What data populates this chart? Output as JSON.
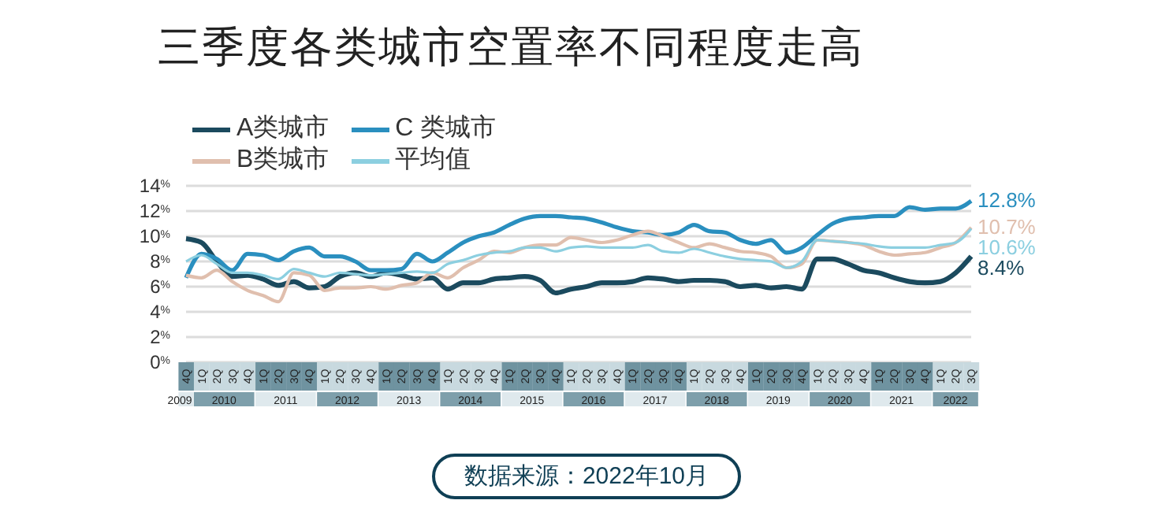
{
  "chart_data": {
    "type": "line",
    "title": "三季度各类城市空置率不同程度走高",
    "categories": [
      "4Q",
      "1Q",
      "2Q",
      "3Q",
      "4Q",
      "1Q",
      "2Q",
      "3Q",
      "4Q",
      "1Q",
      "2Q",
      "3Q",
      "4Q",
      "1Q",
      "2Q",
      "3Q",
      "4Q",
      "1Q",
      "2Q",
      "3Q",
      "4Q",
      "1Q",
      "2Q",
      "3Q",
      "4Q",
      "1Q",
      "2Q",
      "3Q",
      "4Q",
      "1Q",
      "2Q",
      "3Q",
      "4Q",
      "1Q",
      "2Q",
      "3Q",
      "4Q",
      "1Q",
      "2Q",
      "3Q",
      "4Q",
      "1Q",
      "2Q",
      "3Q",
      "4Q",
      "1Q",
      "2Q",
      "3Q",
      "4Q",
      "1Q",
      "2Q",
      "3Q"
    ],
    "series": [
      {
        "name": "A类城市",
        "color": "#1b4a5e",
        "values": [
          9.8,
          9.5,
          8.0,
          6.8,
          6.9,
          6.6,
          6.1,
          6.4,
          5.9,
          6.0,
          6.8,
          7.1,
          6.8,
          7.1,
          6.9,
          6.6,
          6.7,
          5.8,
          6.3,
          6.3,
          6.6,
          6.7,
          6.8,
          6.5,
          5.5,
          5.8,
          6.0,
          6.3,
          6.3,
          6.4,
          6.7,
          6.6,
          6.4,
          6.5,
          6.5,
          6.4,
          6.0,
          6.1,
          5.9,
          6.0,
          5.8,
          8.2,
          8.2,
          7.8,
          7.3,
          7.1,
          6.7,
          6.4,
          6.3,
          6.4,
          7.1,
          8.4
        ],
        "value_labels": [
          null,
          null,
          null,
          null,
          null,
          null,
          null,
          null,
          null,
          null,
          null,
          null,
          null,
          null,
          null,
          null,
          null,
          null,
          null,
          null,
          null,
          null,
          null,
          null,
          null,
          null,
          null,
          null,
          null,
          null,
          null,
          null,
          null,
          null,
          null,
          null,
          null,
          null,
          null,
          null,
          null,
          null,
          null,
          null,
          null,
          null,
          null,
          null,
          null,
          null,
          null,
          "8.4%"
        ]
      },
      {
        "name": "C 类城市",
        "color": "#2a8fbf",
        "values": [
          6.7,
          8.6,
          8.2,
          7.3,
          8.6,
          8.5,
          8.1,
          8.8,
          9.1,
          8.4,
          8.4,
          8.0,
          7.3,
          7.3,
          7.4,
          8.6,
          8.0,
          8.7,
          9.5,
          10.0,
          10.3,
          10.9,
          11.4,
          11.6,
          11.6,
          11.5,
          11.4,
          11.1,
          10.7,
          10.4,
          10.3,
          10.1,
          10.3,
          10.9,
          10.4,
          10.3,
          9.7,
          9.4,
          9.7,
          8.7,
          9.1,
          10.1,
          11.0,
          11.4,
          11.5,
          11.6,
          11.6,
          12.3,
          12.1,
          12.2,
          12.2,
          12.8
        ],
        "value_labels": [
          null,
          null,
          null,
          null,
          null,
          null,
          null,
          null,
          null,
          null,
          null,
          null,
          null,
          null,
          null,
          null,
          null,
          null,
          null,
          null,
          null,
          null,
          null,
          null,
          null,
          null,
          null,
          null,
          null,
          null,
          null,
          null,
          null,
          null,
          null,
          null,
          null,
          null,
          null,
          null,
          null,
          null,
          null,
          null,
          null,
          null,
          null,
          null,
          null,
          null,
          null,
          "12.8%"
        ]
      },
      {
        "name": "B类城市",
        "color": "#e0bfae",
        "values": [
          6.9,
          6.7,
          7.3,
          6.4,
          5.7,
          5.3,
          4.8,
          7.1,
          6.9,
          5.7,
          5.9,
          5.9,
          6.0,
          5.8,
          6.1,
          6.3,
          7.1,
          6.7,
          7.5,
          8.1,
          8.8,
          8.7,
          9.1,
          9.3,
          9.3,
          9.9,
          9.7,
          9.5,
          9.7,
          10.1,
          10.4,
          10.0,
          9.5,
          9.1,
          9.4,
          9.1,
          8.8,
          8.7,
          8.4,
          7.5,
          7.8,
          9.7,
          9.6,
          9.5,
          9.3,
          8.8,
          8.5,
          8.6,
          8.7,
          9.1,
          9.5,
          10.7
        ],
        "value_labels": [
          null,
          null,
          null,
          null,
          null,
          null,
          null,
          null,
          null,
          null,
          null,
          null,
          null,
          null,
          null,
          null,
          null,
          null,
          null,
          null,
          null,
          null,
          null,
          null,
          null,
          null,
          null,
          null,
          null,
          null,
          null,
          null,
          null,
          null,
          null,
          null,
          null,
          null,
          null,
          null,
          null,
          null,
          null,
          null,
          null,
          null,
          null,
          null,
          null,
          null,
          null,
          "10.7%"
        ]
      },
      {
        "name": "平均值",
        "color": "#8ccfe0",
        "values": [
          8.0,
          8.5,
          7.8,
          7.1,
          7.1,
          6.9,
          6.6,
          7.4,
          7.1,
          6.8,
          7.1,
          7.0,
          6.9,
          7.0,
          7.1,
          7.2,
          7.1,
          7.8,
          8.1,
          8.5,
          8.7,
          8.8,
          9.1,
          9.1,
          8.8,
          9.1,
          9.2,
          9.1,
          9.1,
          9.1,
          9.3,
          8.8,
          8.7,
          9.0,
          8.7,
          8.4,
          8.2,
          8.1,
          8.0,
          7.5,
          8.0,
          9.7,
          9.6,
          9.5,
          9.4,
          9.2,
          9.1,
          9.1,
          9.1,
          9.3,
          9.5,
          10.6
        ],
        "value_labels": [
          null,
          null,
          null,
          null,
          null,
          null,
          null,
          null,
          null,
          null,
          null,
          null,
          null,
          null,
          null,
          null,
          null,
          null,
          null,
          null,
          null,
          null,
          null,
          null,
          null,
          null,
          null,
          null,
          null,
          null,
          null,
          null,
          null,
          null,
          null,
          null,
          null,
          null,
          null,
          null,
          null,
          null,
          null,
          null,
          null,
          null,
          null,
          null,
          null,
          null,
          null,
          "10.6%"
        ]
      }
    ],
    "ylim": [
      0,
      14
    ],
    "yticks": [
      {
        "value": 0,
        "label": "0$^{%}$"
      },
      {
        "value": 2,
        "label": "2$^{%}$"
      },
      {
        "value": 4,
        "label": "4$^{%}$"
      },
      {
        "value": 6,
        "label": "6$^{%}$"
      },
      {
        "value": 8,
        "label": "8$^{%}$"
      },
      {
        "value": 10,
        "label": "10$^{%}$"
      },
      {
        "value": 12,
        "label": "12$^{%}$"
      },
      {
        "value": 14,
        "label": "14$^{%}$"
      }
    ],
    "grid": "y",
    "legend": "top left",
    "marker": "none",
    "line_style": "solid",
    "annotations": [
      "2009",
      "2010",
      "2011",
      "2012",
      "2013",
      "2014",
      "2015",
      "2016",
      "2017",
      "2018",
      "2019",
      "2020",
      "2021",
      "2022",
      "数据来源：2022年10月"
    ]
  }
}
